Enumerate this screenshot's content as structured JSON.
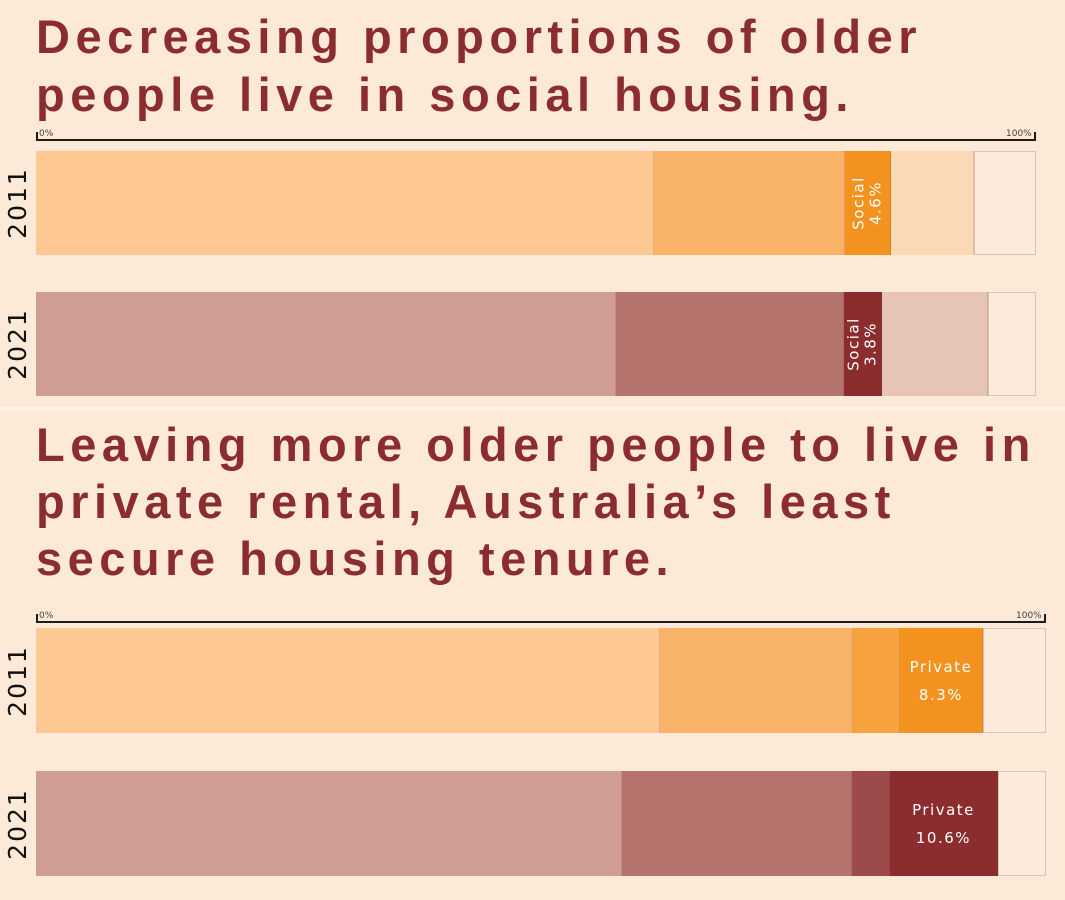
{
  "chart_data": [
    {
      "type": "bar",
      "orientation": "horizontal-stacked-100",
      "title": "Decreasing proportions of older people live in social housing.",
      "xlim": [
        0,
        100
      ],
      "axis": {
        "min_label": "0%",
        "max_label": "100%"
      },
      "highlight_category": "Social",
      "rows": [
        {
          "year": "2011",
          "segments": [
            {
              "value": 61.8,
              "color": "#fcc790"
            },
            {
              "value": 19.1,
              "color": "#f8b369"
            },
            {
              "value": 4.6,
              "color": "#f3921f",
              "label": "Social",
              "value_label": "4.6%"
            },
            {
              "value": 8.3,
              "color": "#fcd9b5"
            },
            {
              "value": 6.2,
              "color": "#fdeadb"
            }
          ]
        },
        {
          "year": "2021",
          "segments": [
            {
              "value": 58.0,
              "color": "#cf9d94"
            },
            {
              "value": 22.8,
              "color": "#b5736e"
            },
            {
              "value": 3.8,
              "color": "#8b2d2f",
              "label": "Social",
              "value_label": "3.8%"
            },
            {
              "value": 10.6,
              "color": "#e6c4b6"
            },
            {
              "value": 4.8,
              "color": "#fdeadb"
            }
          ]
        }
      ]
    },
    {
      "type": "bar",
      "orientation": "horizontal-stacked-100",
      "title": "Leaving more older people to live in private rental, Australia’s least secure housing tenure.",
      "xlim": [
        0,
        100
      ],
      "axis": {
        "min_label": "0%",
        "max_label": "100%"
      },
      "highlight_category": "Private",
      "rows": [
        {
          "year": "2011",
          "segments": [
            {
              "value": 61.8,
              "color": "#fcc790"
            },
            {
              "value": 19.1,
              "color": "#f8b369"
            },
            {
              "value": 4.6,
              "color": "#f6a23f"
            },
            {
              "value": 8.3,
              "color": "#f3921f",
              "label": "Private",
              "value_label": "8.3%"
            },
            {
              "value": 6.2,
              "color": "#fdeadb"
            }
          ]
        },
        {
          "year": "2021",
          "segments": [
            {
              "value": 58.0,
              "color": "#cf9d94"
            },
            {
              "value": 22.8,
              "color": "#b5736e"
            },
            {
              "value": 3.8,
              "color": "#9c4a4c"
            },
            {
              "value": 10.6,
              "color": "#8b2d2f",
              "label": "Private",
              "value_label": "10.6%"
            },
            {
              "value": 4.8,
              "color": "#fdeadb"
            }
          ]
        }
      ]
    }
  ]
}
